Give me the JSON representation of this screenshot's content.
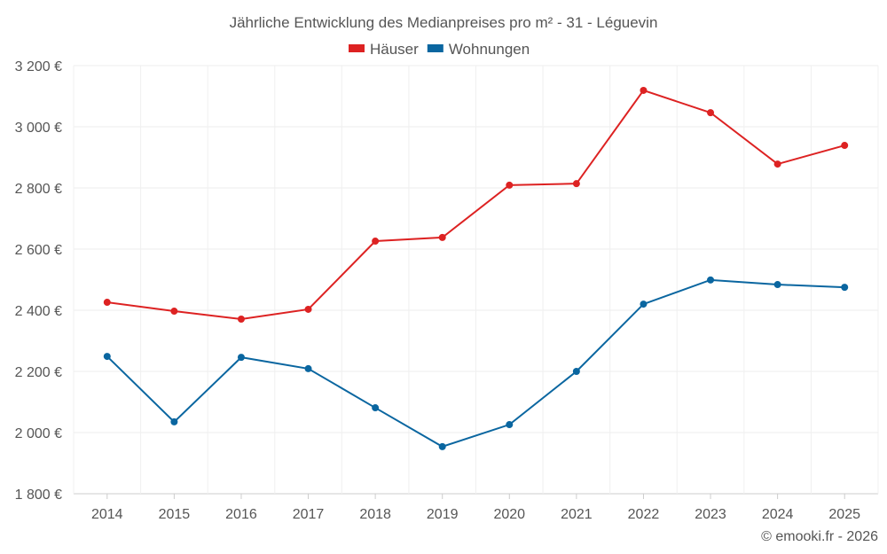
{
  "chart_data": {
    "type": "line",
    "title": "Jährliche Entwicklung des Medianpreises pro m² - 31 - Léguevin",
    "categories": [
      "2014",
      "2015",
      "2016",
      "2017",
      "2018",
      "2019",
      "2020",
      "2021",
      "2022",
      "2023",
      "2024",
      "2025"
    ],
    "series": [
      {
        "name": "Häuser",
        "color": "#dd2222",
        "values": [
          2426,
          2397,
          2371,
          2403,
          2626,
          2638,
          2809,
          2814,
          3119,
          3046,
          2878,
          2939
        ]
      },
      {
        "name": "Wohnungen",
        "color": "#0a66a0",
        "values": [
          2249,
          2035,
          2246,
          2209,
          2081,
          1954,
          2026,
          2200,
          2420,
          2499,
          2484,
          2475
        ]
      }
    ],
    "ylim": [
      1800,
      3200
    ],
    "yticks": [
      1800,
      2000,
      2200,
      2400,
      2600,
      2800,
      3000,
      3200
    ],
    "ytick_labels": [
      "1 800 €",
      "2 000 €",
      "2 200 €",
      "2 400 €",
      "2 600 €",
      "2 800 €",
      "3 000 €",
      "3 200 €"
    ],
    "xlabel": "",
    "ylabel": "",
    "grid": true,
    "legend": "top-center"
  },
  "credit": "© emooki.fr - 2026"
}
